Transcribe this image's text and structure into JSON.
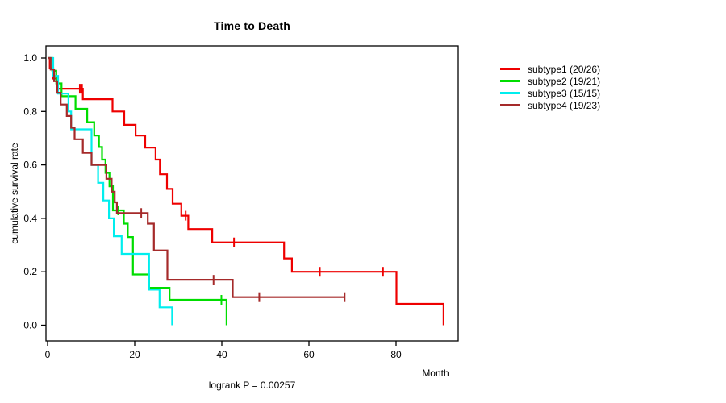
{
  "chart_data": {
    "type": "line",
    "subtype": "kaplan-meier-step",
    "title": "Time to Death",
    "xlabel": "Month",
    "ylabel": "cumulative survival rate",
    "footnote": "logrank P = 0.00257",
    "xlim": [
      0,
      95
    ],
    "ylim": [
      0.0,
      1.0
    ],
    "x_ticks": [
      0,
      20,
      40,
      60,
      80
    ],
    "y_ticks": [
      0.0,
      0.2,
      0.4,
      0.6,
      0.8,
      1.0
    ],
    "grid": false,
    "legend_position": "right-outside",
    "series": [
      {
        "name": "subtype1 (20/26)",
        "color": "#EE0000",
        "steps": [
          [
            0.5,
            0.962
          ],
          [
            1.3,
            0.923
          ],
          [
            2.2,
            0.885
          ],
          [
            8.1,
            0.846
          ],
          [
            14.9,
            0.8
          ],
          [
            17.6,
            0.75
          ],
          [
            20.2,
            0.71
          ],
          [
            22.4,
            0.665
          ],
          [
            24.8,
            0.62
          ],
          [
            25.8,
            0.565
          ],
          [
            27.4,
            0.51
          ],
          [
            28.7,
            0.455
          ],
          [
            30.7,
            0.41
          ],
          [
            32.3,
            0.36
          ],
          [
            37.8,
            0.31
          ],
          [
            54.3,
            0.25
          ],
          [
            56.1,
            0.2
          ],
          [
            80.1,
            0.08
          ],
          [
            90.9,
            0.0
          ]
        ],
        "censors": [
          [
            7.4,
            0.885
          ],
          [
            7.9,
            0.885
          ],
          [
            31.7,
            0.41
          ],
          [
            42.8,
            0.31
          ],
          [
            62.5,
            0.2
          ],
          [
            77.0,
            0.2
          ]
        ],
        "end_month": 90.9
      },
      {
        "name": "subtype2 (19/21)",
        "color": "#00DD00",
        "steps": [
          [
            1.1,
            0.952
          ],
          [
            2.0,
            0.905
          ],
          [
            3.2,
            0.857
          ],
          [
            6.4,
            0.81
          ],
          [
            9.1,
            0.76
          ],
          [
            10.7,
            0.71
          ],
          [
            11.8,
            0.667
          ],
          [
            12.5,
            0.62
          ],
          [
            13.3,
            0.57
          ],
          [
            14.2,
            0.52
          ],
          [
            15.0,
            0.43
          ],
          [
            17.5,
            0.38
          ],
          [
            18.4,
            0.33
          ],
          [
            19.6,
            0.19
          ],
          [
            23.3,
            0.14
          ],
          [
            28.0,
            0.095
          ],
          [
            41.1,
            0.0
          ]
        ],
        "censors": [
          [
            16.2,
            0.43
          ],
          [
            39.9,
            0.095
          ]
        ],
        "end_month": 41.1
      },
      {
        "name": "subtype3 (15/15)",
        "color": "#00EEEE",
        "steps": [
          [
            1.3,
            0.933
          ],
          [
            2.4,
            0.867
          ],
          [
            4.8,
            0.8
          ],
          [
            5.4,
            0.733
          ],
          [
            10.1,
            0.6
          ],
          [
            11.6,
            0.533
          ],
          [
            12.8,
            0.467
          ],
          [
            14.1,
            0.4
          ],
          [
            15.2,
            0.333
          ],
          [
            17.0,
            0.267
          ],
          [
            23.3,
            0.133
          ],
          [
            25.7,
            0.067
          ],
          [
            28.6,
            0.0
          ]
        ],
        "censors": [],
        "end_month": 28.6
      },
      {
        "name": "subtype4 (19/23)",
        "color": "#A52A2A",
        "steps": [
          [
            0.7,
            0.957
          ],
          [
            1.5,
            0.913
          ],
          [
            2.2,
            0.87
          ],
          [
            3.0,
            0.826
          ],
          [
            4.4,
            0.783
          ],
          [
            5.4,
            0.739
          ],
          [
            6.2,
            0.696
          ],
          [
            8.1,
            0.645
          ],
          [
            10.1,
            0.6
          ],
          [
            13.5,
            0.548
          ],
          [
            14.7,
            0.5
          ],
          [
            15.4,
            0.46
          ],
          [
            15.9,
            0.42
          ],
          [
            23.0,
            0.38
          ],
          [
            24.4,
            0.28
          ],
          [
            27.5,
            0.17
          ],
          [
            42.5,
            0.105
          ]
        ],
        "censors": [
          [
            21.5,
            0.42
          ],
          [
            38.1,
            0.17
          ],
          [
            48.6,
            0.105
          ],
          [
            68.2,
            0.105
          ]
        ],
        "end_month": 68.2
      }
    ]
  },
  "legend": {
    "items": [
      {
        "label": "subtype1 (20/26)",
        "color": "#EE0000"
      },
      {
        "label": "subtype2 (19/21)",
        "color": "#00DD00"
      },
      {
        "label": "subtype3 (15/15)",
        "color": "#00EEEE"
      },
      {
        "label": "subtype4 (19/23)",
        "color": "#A52A2A"
      }
    ]
  }
}
